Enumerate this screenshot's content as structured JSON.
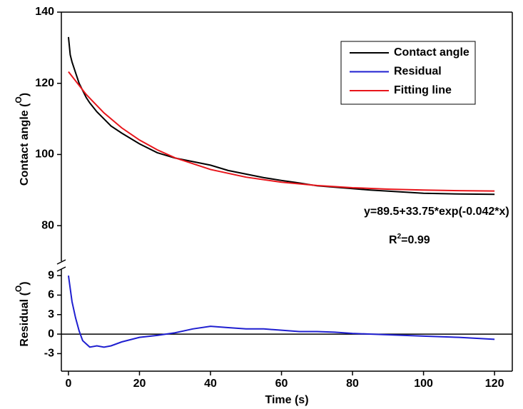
{
  "chart_data": [
    {
      "type": "line",
      "ylabel": [
        "Contact angle (",
        "O",
        ")"
      ],
      "xlim": [
        -2,
        125
      ],
      "ylim": [
        70,
        140
      ],
      "yticks": [
        80,
        100,
        120,
        140
      ],
      "series": [
        {
          "name": "Contact angle",
          "color": "#000000",
          "x": [
            0,
            0.5,
            1,
            2,
            3,
            4,
            5,
            6,
            8,
            10,
            12,
            15,
            20,
            25,
            30,
            35,
            40,
            45,
            50,
            55,
            60,
            65,
            70,
            75,
            80,
            85,
            90,
            95,
            100,
            110,
            120
          ],
          "values": [
            133,
            128,
            126,
            123,
            120,
            118,
            116,
            114.5,
            112,
            110,
            108,
            106,
            103,
            100.5,
            99,
            98,
            97,
            95.5,
            94.5,
            93.5,
            92.7,
            92,
            91.2,
            90.8,
            90.4,
            90,
            89.7,
            89.4,
            89.1,
            88.9,
            88.8
          ]
        },
        {
          "name": "Fitting line",
          "color": "#e8151b",
          "x": [
            0,
            5,
            10,
            15,
            20,
            25,
            30,
            40,
            50,
            60,
            70,
            80,
            90,
            100,
            110,
            120
          ],
          "values": [
            123.25,
            116.86,
            111.68,
            107.48,
            104.07,
            101.31,
            99.07,
            95.79,
            93.63,
            92.22,
            91.29,
            90.67,
            90.27,
            90.01,
            89.83,
            89.72
          ]
        }
      ],
      "annotations": {
        "equation": "y=89.5+33.75*exp(-0.042*x)",
        "r2": [
          "R",
          "2",
          "=0.99"
        ]
      }
    },
    {
      "type": "line",
      "ylabel": [
        "Residual (",
        "O",
        ")"
      ],
      "xlabel": "Time (s)",
      "xlim": [
        -2,
        125
      ],
      "xticks": [
        0,
        20,
        40,
        60,
        80,
        100,
        120
      ],
      "ylim": [
        -5.7,
        10
      ],
      "yticks": [
        -3,
        0,
        3,
        6,
        9
      ],
      "zero_line": 0,
      "series": [
        {
          "name": "Residual",
          "color": "#1f1fd0",
          "x": [
            0,
            1,
            2,
            3,
            4,
            5,
            6,
            8,
            10,
            12,
            15,
            20,
            25,
            30,
            35,
            40,
            45,
            50,
            55,
            60,
            65,
            70,
            75,
            80,
            90,
            100,
            110,
            120
          ],
          "values": [
            9,
            5,
            2.5,
            0.5,
            -1,
            -1.5,
            -2,
            -1.8,
            -2,
            -1.8,
            -1.2,
            -0.5,
            -0.2,
            0.2,
            0.8,
            1.2,
            1,
            0.8,
            0.8,
            0.6,
            0.4,
            0.4,
            0.3,
            0.1,
            -0.1,
            -0.3,
            -0.5,
            -0.8
          ]
        }
      ]
    }
  ]
}
